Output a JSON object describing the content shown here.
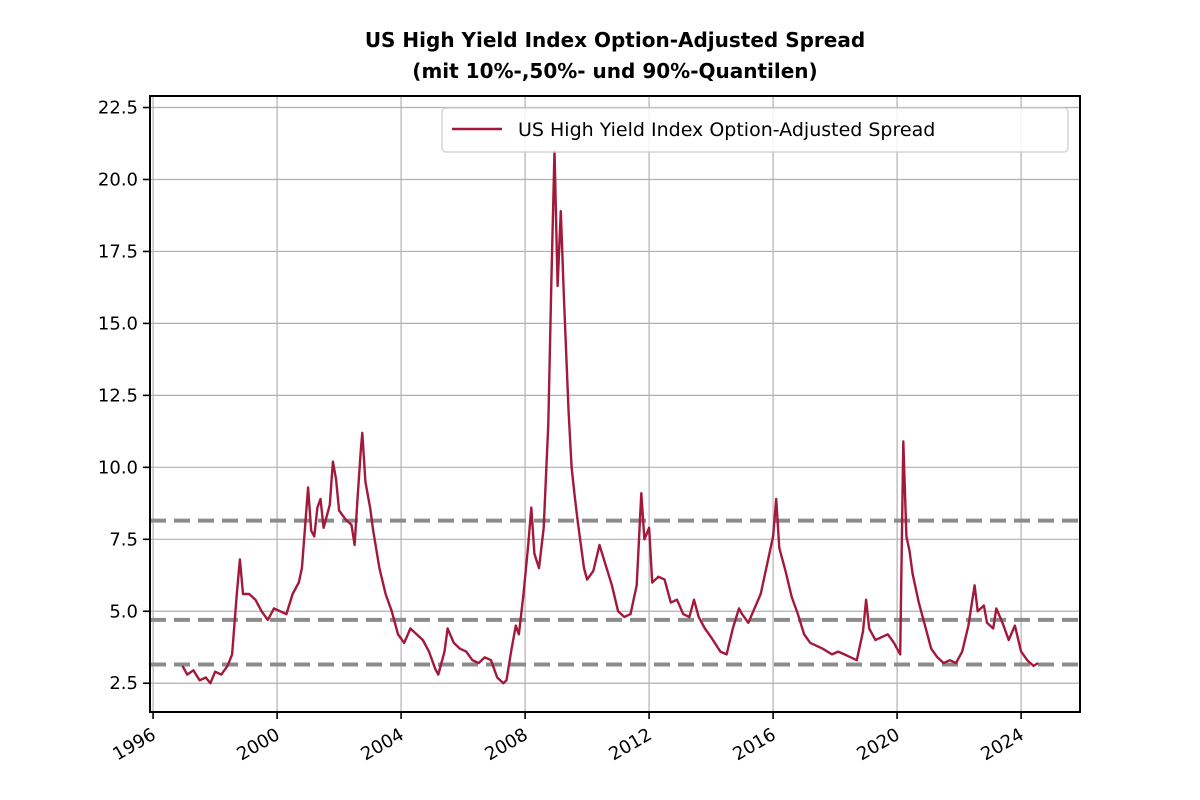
{
  "chart_data": {
    "type": "line",
    "title": "US High Yield Index Option-Adjusted Spread",
    "subtitle": "(mit 10%-,50%- und 90%-Quantilen)",
    "xlabel": "",
    "ylabel": "",
    "xlim": [
      1995.9,
      2025.9
    ],
    "ylim": [
      1.5,
      22.9
    ],
    "x_ticks": [
      "1996",
      "2000",
      "2004",
      "2008",
      "2012",
      "2016",
      "2020",
      "2024"
    ],
    "y_ticks": [
      "2.5",
      "5.0",
      "7.5",
      "10.0",
      "12.5",
      "15.0",
      "17.5",
      "20.0",
      "22.5"
    ],
    "grid": true,
    "legend_position": "top-right",
    "colors": {
      "series": "#a3193b",
      "quantile": "#8c8c8c",
      "grid": "#b0b0b0"
    },
    "series": [
      {
        "name": "US High Yield Index Option-Adjusted Spread",
        "points": [
          [
            1996.95,
            3.1
          ],
          [
            1997.1,
            2.8
          ],
          [
            1997.3,
            2.95
          ],
          [
            1997.5,
            2.6
          ],
          [
            1997.7,
            2.7
          ],
          [
            1997.85,
            2.5
          ],
          [
            1998.0,
            2.9
          ],
          [
            1998.2,
            2.8
          ],
          [
            1998.4,
            3.1
          ],
          [
            1998.55,
            3.5
          ],
          [
            1998.7,
            5.6
          ],
          [
            1998.8,
            6.8
          ],
          [
            1998.9,
            5.6
          ],
          [
            1999.1,
            5.6
          ],
          [
            1999.3,
            5.4
          ],
          [
            1999.5,
            5.0
          ],
          [
            1999.7,
            4.7
          ],
          [
            1999.9,
            5.1
          ],
          [
            2000.1,
            5.0
          ],
          [
            2000.3,
            4.9
          ],
          [
            2000.5,
            5.6
          ],
          [
            2000.7,
            6.0
          ],
          [
            2000.8,
            6.5
          ],
          [
            2000.9,
            7.9
          ],
          [
            2001.0,
            9.3
          ],
          [
            2001.1,
            7.8
          ],
          [
            2001.2,
            7.6
          ],
          [
            2001.3,
            8.6
          ],
          [
            2001.4,
            8.9
          ],
          [
            2001.5,
            7.9
          ],
          [
            2001.6,
            8.3
          ],
          [
            2001.7,
            8.7
          ],
          [
            2001.8,
            10.2
          ],
          [
            2001.9,
            9.6
          ],
          [
            2002.0,
            8.5
          ],
          [
            2002.2,
            8.2
          ],
          [
            2002.4,
            8.0
          ],
          [
            2002.5,
            7.3
          ],
          [
            2002.6,
            9.0
          ],
          [
            2002.7,
            10.6
          ],
          [
            2002.75,
            11.2
          ],
          [
            2002.85,
            9.5
          ],
          [
            2003.0,
            8.6
          ],
          [
            2003.1,
            7.8
          ],
          [
            2003.3,
            6.5
          ],
          [
            2003.5,
            5.6
          ],
          [
            2003.7,
            5.0
          ],
          [
            2003.9,
            4.2
          ],
          [
            2004.1,
            3.9
          ],
          [
            2004.3,
            4.4
          ],
          [
            2004.5,
            4.2
          ],
          [
            2004.7,
            4.0
          ],
          [
            2004.9,
            3.6
          ],
          [
            2005.1,
            3.0
          ],
          [
            2005.2,
            2.8
          ],
          [
            2005.4,
            3.6
          ],
          [
            2005.5,
            4.4
          ],
          [
            2005.7,
            3.9
          ],
          [
            2005.9,
            3.7
          ],
          [
            2006.1,
            3.6
          ],
          [
            2006.3,
            3.3
          ],
          [
            2006.5,
            3.2
          ],
          [
            2006.7,
            3.4
          ],
          [
            2006.9,
            3.3
          ],
          [
            2007.1,
            2.7
          ],
          [
            2007.3,
            2.5
          ],
          [
            2007.4,
            2.6
          ],
          [
            2007.55,
            3.6
          ],
          [
            2007.7,
            4.5
          ],
          [
            2007.8,
            4.2
          ],
          [
            2007.95,
            5.6
          ],
          [
            2008.1,
            7.3
          ],
          [
            2008.2,
            8.6
          ],
          [
            2008.3,
            7.0
          ],
          [
            2008.45,
            6.5
          ],
          [
            2008.6,
            7.9
          ],
          [
            2008.75,
            11.5
          ],
          [
            2008.85,
            16.5
          ],
          [
            2008.95,
            21.0
          ],
          [
            2009.05,
            16.3
          ],
          [
            2009.15,
            18.9
          ],
          [
            2009.25,
            16.0
          ],
          [
            2009.4,
            12.0
          ],
          [
            2009.5,
            10.0
          ],
          [
            2009.6,
            9.0
          ],
          [
            2009.7,
            8.1
          ],
          [
            2009.9,
            6.5
          ],
          [
            2010.0,
            6.1
          ],
          [
            2010.2,
            6.4
          ],
          [
            2010.4,
            7.3
          ],
          [
            2010.6,
            6.6
          ],
          [
            2010.8,
            5.9
          ],
          [
            2011.0,
            5.0
          ],
          [
            2011.2,
            4.8
          ],
          [
            2011.4,
            4.9
          ],
          [
            2011.6,
            5.9
          ],
          [
            2011.75,
            9.1
          ],
          [
            2011.85,
            7.5
          ],
          [
            2012.0,
            7.9
          ],
          [
            2012.1,
            6.0
          ],
          [
            2012.3,
            6.2
          ],
          [
            2012.5,
            6.1
          ],
          [
            2012.7,
            5.3
          ],
          [
            2012.9,
            5.4
          ],
          [
            2013.1,
            4.9
          ],
          [
            2013.3,
            4.8
          ],
          [
            2013.45,
            5.4
          ],
          [
            2013.6,
            4.8
          ],
          [
            2013.8,
            4.4
          ],
          [
            2014.0,
            4.1
          ],
          [
            2014.3,
            3.6
          ],
          [
            2014.5,
            3.5
          ],
          [
            2014.7,
            4.4
          ],
          [
            2014.9,
            5.1
          ],
          [
            2015.0,
            4.9
          ],
          [
            2015.2,
            4.6
          ],
          [
            2015.4,
            5.1
          ],
          [
            2015.6,
            5.6
          ],
          [
            2015.8,
            6.6
          ],
          [
            2016.0,
            7.6
          ],
          [
            2016.1,
            8.9
          ],
          [
            2016.2,
            7.2
          ],
          [
            2016.4,
            6.4
          ],
          [
            2016.6,
            5.5
          ],
          [
            2016.8,
            4.9
          ],
          [
            2017.0,
            4.2
          ],
          [
            2017.2,
            3.9
          ],
          [
            2017.4,
            3.8
          ],
          [
            2017.6,
            3.7
          ],
          [
            2017.9,
            3.5
          ],
          [
            2018.1,
            3.6
          ],
          [
            2018.3,
            3.5
          ],
          [
            2018.5,
            3.4
          ],
          [
            2018.7,
            3.3
          ],
          [
            2018.9,
            4.3
          ],
          [
            2019.0,
            5.4
          ],
          [
            2019.1,
            4.4
          ],
          [
            2019.3,
            4.0
          ],
          [
            2019.5,
            4.1
          ],
          [
            2019.7,
            4.2
          ],
          [
            2019.9,
            3.9
          ],
          [
            2020.1,
            3.5
          ],
          [
            2020.2,
            10.9
          ],
          [
            2020.3,
            7.6
          ],
          [
            2020.4,
            7.1
          ],
          [
            2020.5,
            6.3
          ],
          [
            2020.7,
            5.3
          ],
          [
            2020.9,
            4.5
          ],
          [
            2021.1,
            3.7
          ],
          [
            2021.3,
            3.4
          ],
          [
            2021.5,
            3.2
          ],
          [
            2021.7,
            3.3
          ],
          [
            2021.9,
            3.2
          ],
          [
            2022.1,
            3.6
          ],
          [
            2022.3,
            4.5
          ],
          [
            2022.5,
            5.9
          ],
          [
            2022.6,
            5.0
          ],
          [
            2022.8,
            5.2
          ],
          [
            2022.9,
            4.6
          ],
          [
            2023.1,
            4.4
          ],
          [
            2023.2,
            5.1
          ],
          [
            2023.4,
            4.6
          ],
          [
            2023.6,
            4.0
          ],
          [
            2023.8,
            4.5
          ],
          [
            2024.0,
            3.6
          ],
          [
            2024.2,
            3.3
          ],
          [
            2024.4,
            3.1
          ],
          [
            2024.55,
            3.2
          ]
        ]
      }
    ],
    "quantiles": {
      "q10": 3.15,
      "q50": 4.7,
      "q90": 8.15
    }
  }
}
